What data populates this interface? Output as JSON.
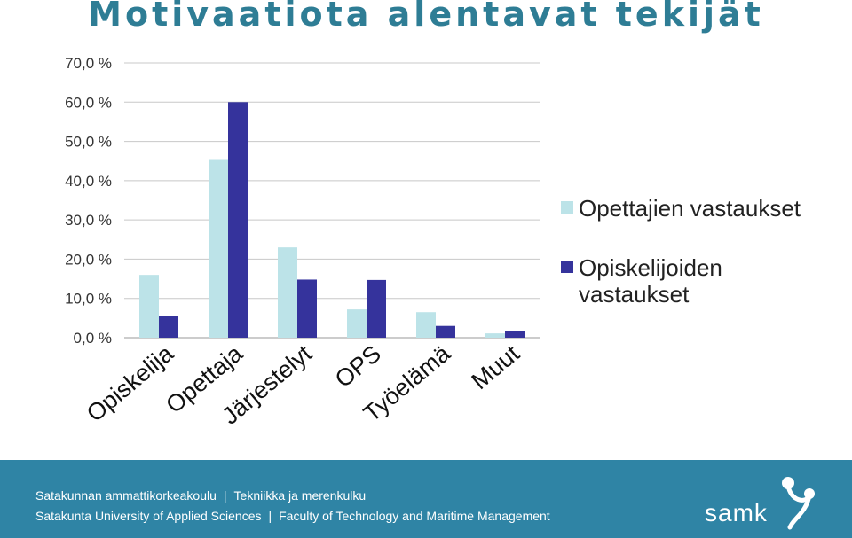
{
  "chart_data": {
    "type": "bar",
    "title": "Motivaatiota alentavat tekijät",
    "categories": [
      "Opiskelija",
      "Opettaja",
      "Järjestelyt",
      "OPS",
      "Työelämä",
      "Muut"
    ],
    "series": [
      {
        "name": "Opettajien vastaukset",
        "values": [
          16.0,
          45.5,
          23.0,
          7.2,
          6.5,
          1.1
        ]
      },
      {
        "name": "Opiskelijoiden vastaukset",
        "values": [
          5.5,
          60.0,
          14.8,
          14.7,
          3.0,
          1.6
        ]
      }
    ],
    "yticks": [
      "0,0 %",
      "10,0 %",
      "20,0 %",
      "30,0 %",
      "40,0 %",
      "50,0 %",
      "60,0 %",
      "70,0 %"
    ],
    "ylim": [
      0,
      70
    ],
    "grid": true,
    "legend_position": "right",
    "colors": {
      "series1": "#bce3e8",
      "series2": "#35339c"
    }
  },
  "legend": {
    "item1": "Opettajien vastaukset",
    "item2_line1": "Opiskelijoiden",
    "item2_line2": "vastaukset"
  },
  "footer": {
    "line1_a": "Satakunnan ammattikorkeakoulu",
    "line1_sep": "|",
    "line1_b": "Tekniikka ja merenkulku",
    "line2_a": "Satakunta University of Applied Sciences",
    "line2_sep": "|",
    "line2_b": "Faculty of Technology and Maritime Management",
    "logo_text": "samk",
    "bg_color": "#2f84a5"
  }
}
